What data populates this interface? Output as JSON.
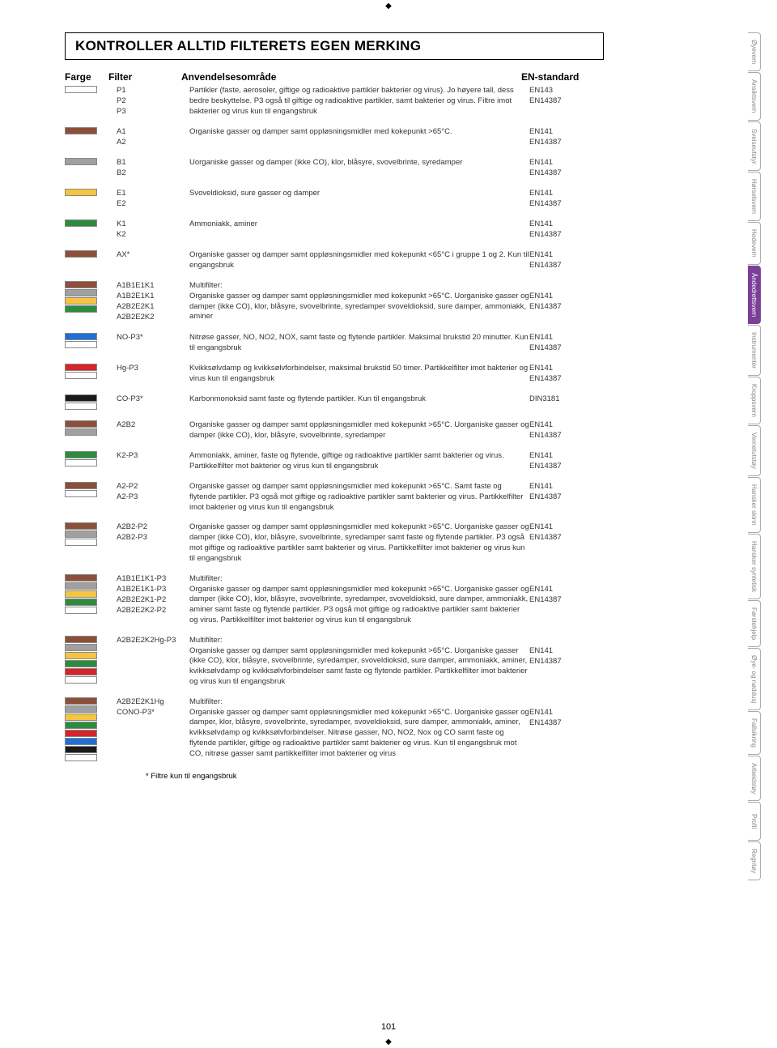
{
  "title": "KONTROLLER ALLTID FILTERETS EGEN MERKING",
  "headers": {
    "farge": "Farge",
    "filter": "Filter",
    "desc": "Anvendelsesområde",
    "std": "EN-standard"
  },
  "colors": {
    "white": "#ffffff",
    "brown": "#8b4f3a",
    "grey": "#a0a0a0",
    "yellow": "#f5c542",
    "green": "#2e8b3e",
    "blue": "#1f6fd6",
    "red": "#d8232a",
    "black": "#1a1a1a",
    "purple": "#7b3f98"
  },
  "entries": [
    {
      "swatches": [
        "white"
      ],
      "filters": [
        "P1",
        "P2",
        "P3"
      ],
      "desc": "Partikler (faste, aerosoler, giftige og radioaktive partikler bakterier og virus). Jo høyere tall, dess bedre beskyttelse. P3 også til giftige og radioaktive partikler, samt bakterier og virus. Filtre imot bakterier og virus kun til engangsbruk",
      "stds": [
        "EN143",
        "EN14387"
      ]
    },
    {
      "swatches": [
        "brown"
      ],
      "filters": [
        "A1",
        "A2"
      ],
      "desc": "Organiske gasser og damper samt oppløsningsmidler med kokepunkt >65°C.",
      "stds": [
        "EN141",
        "EN14387"
      ]
    },
    {
      "swatches": [
        "grey"
      ],
      "filters": [
        "B1",
        "B2"
      ],
      "desc": "Uorganiske gasser og damper (ikke CO), klor, blåsyre, svovelbrinte, syredamper",
      "stds": [
        "EN141",
        "EN14387"
      ]
    },
    {
      "swatches": [
        "yellow"
      ],
      "filters": [
        "E1",
        "E2"
      ],
      "desc": "Svoveldioksid, sure gasser og damper",
      "stds": [
        "EN141",
        "EN14387"
      ]
    },
    {
      "swatches": [
        "green"
      ],
      "filters": [
        "K1",
        "K2"
      ],
      "desc": "Ammoniakk, aminer",
      "stds": [
        "EN141",
        "EN14387"
      ]
    },
    {
      "swatches": [
        "brown"
      ],
      "filters": [
        "AX*"
      ],
      "desc": "Organiske gasser og damper samt oppløsningsmidler med kokepunkt <65°C i gruppe 1 og 2. Kun til engangsbruk",
      "stds": [
        "EN141",
        "EN14387"
      ]
    },
    {
      "swatches": [
        "brown",
        "grey",
        "yellow",
        "green"
      ],
      "filters": [
        "A1B1E1K1",
        "A1B2E1K1",
        "A2B2E2K1",
        "A2B2E2K2"
      ],
      "desc": "Multifilter:\nOrganiske gasser og damper samt oppløsningsmidler med kokepunkt >65°C. Uorganiske gasser og damper (ikke CO), klor, blåsyre, svovelbrinte, syredamper svoveldioksid, sure damper, ammoniakk, aminer",
      "stds": [
        "",
        "EN141",
        "EN14387"
      ]
    },
    {
      "swatches": [
        "blue",
        "white"
      ],
      "filters": [
        "NO-P3*"
      ],
      "desc": "Nitrøse gasser, NO, NO2, NOX, samt faste og flytende partikler. Maksimal brukstid 20 minutter. Kun til engangsbruk",
      "stds": [
        "EN141",
        "EN14387"
      ]
    },
    {
      "swatches": [
        "red",
        "white"
      ],
      "filters": [
        "Hg-P3"
      ],
      "desc": "Kvikksølvdamp og kvikksølvforbindelser, maksimal brukstid 50 timer. Partikkelfilter imot bakterier og virus kun til engangsbruk",
      "stds": [
        "EN141",
        "EN14387"
      ]
    },
    {
      "swatches": [
        "black",
        "white"
      ],
      "filters": [
        "CO-P3*"
      ],
      "desc": "Karbonmonoksid samt faste og flytende partikler. Kun til engangsbruk",
      "stds": [
        "DIN3181"
      ]
    },
    {
      "swatches": [
        "brown",
        "grey"
      ],
      "filters": [
        "A2B2"
      ],
      "desc": "Organiske gasser og damper samt oppløsningsmidler med kokepunkt >65°C. Uorganiske gasser og damper (ikke CO), klor, blåsyre, svovelbrinte, syredamper",
      "stds": [
        "EN141",
        "EN14387"
      ]
    },
    {
      "swatches": [
        "green",
        "white"
      ],
      "filters": [
        "K2-P3"
      ],
      "desc": "Ammoniakk, aminer, faste og flytende, giftige og radioaktive partikler samt bakterier og virus. Partikkelfilter mot bakterier og virus kun til engangsbruk",
      "stds": [
        "EN141",
        "EN14387"
      ]
    },
    {
      "swatches": [
        "brown",
        "white"
      ],
      "filters": [
        "A2-P2",
        "A2-P3"
      ],
      "desc": "Organiske gasser og damper samt oppløsningsmidler med kokepunkt >65°C. Samt faste og flytende partikler. P3 også mot giftige og radioaktive partikler samt bakterier og virus. Partikkelfilter imot bakterier og virus kun til engangsbruk",
      "stds": [
        "EN141",
        "EN14387"
      ]
    },
    {
      "swatches": [
        "brown",
        "grey",
        "white"
      ],
      "filters": [
        "A2B2-P2",
        "A2B2-P3"
      ],
      "desc": "Organiske gasser og damper samt oppløsningsmidler med kokepunkt >65°C. Uorganiske gasser og damper (ikke CO), klor, blåsyre, svovelbrinte, syredamper samt faste og flytende partikler. P3 også mot giftige og radioaktive partikler samt bakterier og virus. Partikkelfilter imot bakterier og virus kun til engangsbruk",
      "stds": [
        "EN141",
        "EN14387"
      ]
    },
    {
      "swatches": [
        "brown",
        "grey",
        "yellow",
        "green",
        "white"
      ],
      "filters": [
        "A1B1E1K1-P3",
        "A1B2E1K1-P3",
        "A2B2E2K1-P2",
        "A2B2E2K2-P2"
      ],
      "desc": "Multifilter:\nOrganiske gasser og damper samt oppløsningsmidler med kokepunkt >65°C. Uorganiske gasser og damper (ikke CO), klor, blåsyre, svovelbrinte, syredamper, svoveldioksid, sure damper, ammoniakk, aminer samt faste og flytende partikler. P3 også mot giftige og radioaktive partikler samt bakterier og virus. Partikkelfilter imot bakterier og virus kun til engangsbruk",
      "stds": [
        "",
        "EN141",
        "EN14387"
      ]
    },
    {
      "swatches": [
        "brown",
        "grey",
        "yellow",
        "green",
        "red",
        "white"
      ],
      "filters": [
        "A2B2E2K2Hg-P3"
      ],
      "desc": "Multifilter:\nOrganiske gasser og damper samt oppløsningsmidler med kokepunkt >65°C. Uorganiske gasser (ikke CO), klor, blåsyre, svovelbrinte, syredamper, svoveldioksid, sure damper, ammoniakk, aminer, kvikksølvdamp og kvikksølvforbindelser samt faste og flytende partikler. Partikkelfilter imot bakterier og virus kun til engangsbruk",
      "stds": [
        "",
        "EN141",
        "EN14387"
      ]
    },
    {
      "swatches": [
        "brown",
        "grey",
        "yellow",
        "green",
        "red",
        "blue",
        "black",
        "white"
      ],
      "filters": [
        "A2B2E2K1Hg",
        "CONO-P3*"
      ],
      "desc": "Multifilter:\nOrganiske gasser og damper samt oppløsningsmidler med kokepunkt >65°C. Uorganiske gasser og damper, klor, blåsyre, svovelbrinte, syredamper, svoveldioksid, sure damper, ammoniakk, aminer, kvikksølvdamp og kvikksølvforbindelser. Nitrøse gasser, NO, NO2, Nox og CO samt faste og flytende partikler, giftige og radioaktive partikler samt bakterier og virus. Kun til engangsbruk mot CO, nitrøse gasser samt partikkelfilter imot bakterier og virus",
      "stds": [
        "",
        "EN141",
        "EN14387"
      ]
    }
  ],
  "footnote": "*  Filtre kun til engangsbruk",
  "pagenum": "101",
  "tabs": [
    {
      "label": "Øyevern",
      "active": false
    },
    {
      "label": "Ansiktsvern",
      "active": false
    },
    {
      "label": "Sveiseutstyr",
      "active": false
    },
    {
      "label": "Hørselsvern",
      "active": false
    },
    {
      "label": "Hodevern",
      "active": false
    },
    {
      "label": "Åndedrettsvern",
      "active": true
    },
    {
      "label": "Instrumenter",
      "active": false
    },
    {
      "label": "Kroppsvern",
      "active": false
    },
    {
      "label": "Vernetutstøy",
      "active": false
    },
    {
      "label": "Hansker skinn",
      "active": false
    },
    {
      "label": "Hansker syntetisk",
      "active": false
    },
    {
      "label": "Førstehjelp",
      "active": false
    },
    {
      "label": "Øye- og nøddusj",
      "active": false
    },
    {
      "label": "Fallsikring",
      "active": false
    },
    {
      "label": "Arbeidstøy",
      "active": false
    },
    {
      "label": "Profil",
      "active": false
    },
    {
      "label": "Regntøy",
      "active": false
    }
  ]
}
